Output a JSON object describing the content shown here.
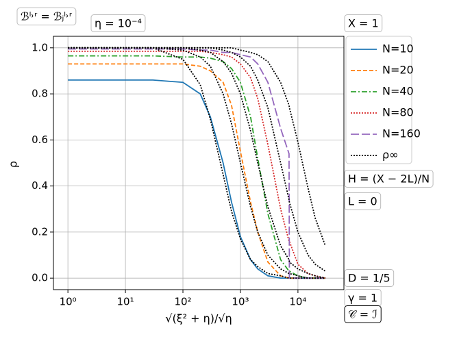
{
  "chart_data": {
    "type": "line",
    "x_label": "√(ξ² + η)/√η",
    "y_label": "ρ",
    "annotations": [
      "ℬˡ˒ʳ = ℬⱼˡ˒ʳ",
      "η = 10⁻⁴",
      "X = 1",
      "H = (X − 2L)/N",
      "L = 0",
      "D = 1/5",
      "γ = 1",
      "𝒞 = ℐ"
    ],
    "x": [
      1,
      10,
      30,
      100,
      200,
      300,
      500,
      700,
      1000,
      1500,
      2000,
      3000,
      5000,
      7000,
      7100,
      10000,
      15000,
      20000,
      30000
    ],
    "log_x": true,
    "grid": true,
    "legend": "outside right",
    "xlim": [
      0.56,
      63000
    ],
    "ylim": [
      -0.05,
      1.05
    ],
    "xticks": [
      {
        "value": 1,
        "label": "10⁰"
      },
      {
        "value": 10,
        "label": "10¹"
      },
      {
        "value": 100,
        "label": "10²"
      },
      {
        "value": 1000,
        "label": "10³"
      },
      {
        "value": 10000,
        "label": "10⁴"
      }
    ],
    "yticks": [
      {
        "value": 0,
        "label": "0.0"
      },
      {
        "value": 0.2,
        "label": "0.2"
      },
      {
        "value": 0.4,
        "label": "0.4"
      },
      {
        "value": 0.6,
        "label": "0.6"
      },
      {
        "value": 0.8,
        "label": "0.8"
      },
      {
        "value": 1,
        "label": "1.0"
      }
    ],
    "series": [
      {
        "name": "N=10",
        "color": "#1f77b4",
        "dash": "solid",
        "values": [
          0.86,
          0.86,
          0.86,
          0.85,
          0.8,
          0.7,
          0.5,
          0.33,
          0.18,
          0.08,
          0.04,
          0.01,
          0,
          0,
          0,
          0,
          0,
          0,
          0
        ]
      },
      {
        "name": "N=20",
        "color": "#ff7f0e",
        "dash": "dashed",
        "values": [
          0.93,
          0.93,
          0.93,
          0.93,
          0.92,
          0.9,
          0.85,
          0.75,
          0.55,
          0.33,
          0.2,
          0.07,
          0.01,
          0,
          0,
          0,
          0,
          0,
          0
        ]
      },
      {
        "name": "N=40",
        "color": "#2ca02c",
        "dash": "dashdot",
        "values": [
          0.965,
          0.965,
          0.965,
          0.96,
          0.96,
          0.955,
          0.94,
          0.91,
          0.85,
          0.7,
          0.52,
          0.28,
          0.08,
          0.03,
          0.03,
          0.01,
          0,
          0,
          0
        ]
      },
      {
        "name": "N=80",
        "color": "#d62728",
        "dash": "dotted",
        "values": [
          0.985,
          0.985,
          0.985,
          0.985,
          0.985,
          0.98,
          0.97,
          0.96,
          0.93,
          0.87,
          0.78,
          0.58,
          0.3,
          0.16,
          0.16,
          0.06,
          0.02,
          0.01,
          0
        ]
      },
      {
        "name": "N=160",
        "color": "#9467bd",
        "dash": "longdash",
        "values": [
          0.995,
          0.995,
          0.995,
          0.995,
          0.99,
          0.99,
          0.98,
          0.98,
          0.97,
          0.96,
          0.93,
          0.85,
          0.65,
          0.54,
          0,
          0,
          0,
          0,
          0
        ]
      },
      {
        "name": "ρ∞",
        "color": "#000000",
        "dash": "dotted",
        "values": [
          1,
          1,
          1,
          0.95,
          0.84,
          0.69,
          0.45,
          0.29,
          0.17,
          0.08,
          0.05,
          0.02,
          0.01,
          0,
          0,
          0,
          0,
          0,
          0
        ]
      },
      {
        "color": "#000000",
        "dash": "dotted",
        "values": [
          1,
          1,
          1,
          0.99,
          0.96,
          0.92,
          0.8,
          0.67,
          0.5,
          0.31,
          0.2,
          0.1,
          0.04,
          0.02,
          0.02,
          0.01,
          0,
          0,
          0
        ]
      },
      {
        "color": "#000000",
        "dash": "dotted",
        "values": [
          1,
          1,
          1,
          1,
          0.99,
          0.98,
          0.94,
          0.89,
          0.8,
          0.64,
          0.5,
          0.31,
          0.14,
          0.08,
          0.07,
          0.04,
          0.02,
          0.01,
          0
        ]
      },
      {
        "color": "#000000",
        "dash": "dotted",
        "values": [
          1,
          1,
          1,
          1,
          1,
          1,
          0.99,
          0.98,
          0.96,
          0.92,
          0.86,
          0.74,
          0.5,
          0.34,
          0.33,
          0.2,
          0.1,
          0.06,
          0.03
        ]
      },
      {
        "color": "#000000",
        "dash": "dotted",
        "values": [
          1,
          1,
          1,
          1,
          1,
          1,
          1,
          1,
          0.99,
          0.98,
          0.97,
          0.94,
          0.85,
          0.75,
          0.74,
          0.59,
          0.39,
          0.26,
          0.14
        ]
      }
    ]
  }
}
